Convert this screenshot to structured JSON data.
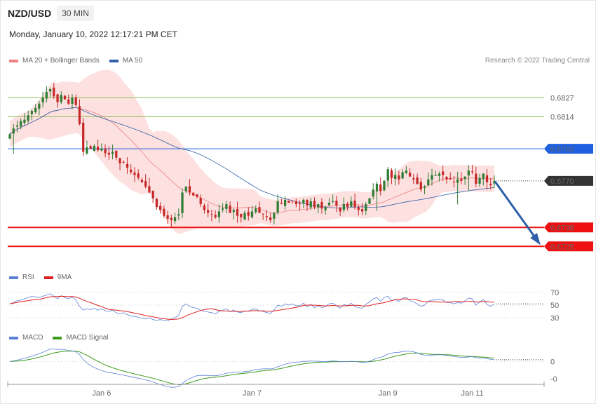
{
  "header": {
    "symbol": "NZD/USD",
    "timeframe": "30 MIN",
    "datetime": "Monday, January 10, 2022 12:17:21 PM CET",
    "credit": "Research © 2022 Trading Central"
  },
  "legend_price": [
    {
      "label": "MA 20 + Bollinger Bands",
      "color": "#f08080"
    },
    {
      "label": "MA 50",
      "color": "#2e5fa8"
    }
  ],
  "legend_rsi": [
    {
      "label": "RSI",
      "color": "#5b7fd8"
    },
    {
      "label": "9MA",
      "color": "#e02020"
    }
  ],
  "legend_macd": [
    {
      "label": "MACD",
      "color": "#5b7fd8"
    },
    {
      "label": "MACD Signal",
      "color": "#3a9a1a"
    }
  ],
  "colors": {
    "up": "#2e7d32",
    "down": "#c62828",
    "band": "#fde0e0",
    "support": "#ee1111",
    "pivot": "#1e60e0",
    "resist": "#8fbf5a",
    "current": "#333333",
    "arrow": "#2e5fa8"
  },
  "chart_data": [
    {
      "type": "candlestick",
      "panel": "price",
      "ylim": [
        0.6716,
        0.6846
      ],
      "x_ticks": [
        "Jan 6",
        "Jan 7",
        "Jan 9",
        "Jan 11"
      ],
      "levels": [
        {
          "value": 0.6827,
          "label": "0.6827",
          "kind": "resist"
        },
        {
          "value": 0.6814,
          "label": "0.6814",
          "kind": "resist"
        },
        {
          "value": 0.6792,
          "label": "0.6792",
          "kind": "pivot"
        },
        {
          "value": 0.677,
          "label": "0.6770",
          "kind": "current"
        },
        {
          "value": 0.6738,
          "label": "0.6738",
          "kind": "support"
        },
        {
          "value": 0.6725,
          "label": "0.6725",
          "kind": "support"
        }
      ],
      "close": [
        0.6802,
        0.6806,
        0.6808,
        0.6811,
        0.6812,
        0.6815,
        0.6818,
        0.682,
        0.6823,
        0.6827,
        0.6831,
        0.6833,
        0.6828,
        0.6824,
        0.6829,
        0.6826,
        0.6823,
        0.6827,
        0.6822,
        0.6809,
        0.679,
        0.6793,
        0.6792,
        0.6794,
        0.6791,
        0.6792,
        0.6789,
        0.6788,
        0.679,
        0.6786,
        0.6782,
        0.6783,
        0.6779,
        0.6776,
        0.6774,
        0.6772,
        0.6769,
        0.6766,
        0.6762,
        0.6758,
        0.6752,
        0.675,
        0.6746,
        0.6744,
        0.6743,
        0.6745,
        0.6747,
        0.6762,
        0.6766,
        0.6762,
        0.676,
        0.6759,
        0.6754,
        0.675,
        0.6748,
        0.6747,
        0.6745,
        0.6749,
        0.6751,
        0.6754,
        0.6748,
        0.675,
        0.6746,
        0.6745,
        0.6748,
        0.6746,
        0.6749,
        0.6751,
        0.6748,
        0.6747,
        0.6745,
        0.6743,
        0.6748,
        0.6756,
        0.6754,
        0.6757,
        0.6755,
        0.6756,
        0.6754,
        0.6754,
        0.6757,
        0.6753,
        0.6756,
        0.6752,
        0.6754,
        0.6751,
        0.6752,
        0.6755,
        0.6756,
        0.6753,
        0.6749,
        0.6754,
        0.6752,
        0.6756,
        0.6752,
        0.675,
        0.6749,
        0.6754,
        0.6758,
        0.6764,
        0.6768,
        0.6763,
        0.677,
        0.6778,
        0.6772,
        0.6774,
        0.6771,
        0.6776,
        0.6777,
        0.6773,
        0.6771,
        0.6768,
        0.6764,
        0.6766,
        0.6771,
        0.6774,
        0.6774,
        0.6775,
        0.6774,
        0.6771,
        0.6771,
        0.6769,
        0.6771,
        0.677,
        0.6773,
        0.6777,
        0.6776,
        0.6768,
        0.6772,
        0.6775,
        0.6769,
        0.6767,
        0.677
      ]
    },
    {
      "type": "line",
      "panel": "rsi",
      "ylim": [
        20,
        80
      ],
      "y_ticks": [
        "70",
        "50",
        "30"
      ],
      "series": [
        {
          "name": "RSI"
        },
        {
          "name": "9MA"
        }
      ],
      "values": [
        52,
        54,
        57,
        58,
        60,
        62,
        64,
        63,
        62,
        64,
        66,
        68,
        64,
        60,
        65,
        62,
        60,
        63,
        58,
        48,
        42,
        44,
        43,
        45,
        42,
        44,
        41,
        40,
        42,
        38,
        36,
        38,
        35,
        33,
        32,
        31,
        29,
        28,
        30,
        27,
        26,
        27,
        26,
        25,
        28,
        30,
        34,
        48,
        52,
        48,
        46,
        45,
        42,
        40,
        39,
        38,
        36,
        40,
        42,
        44,
        40,
        42,
        39,
        38,
        41,
        40,
        43,
        44,
        41,
        40,
        38,
        37,
        42,
        50,
        48,
        52,
        50,
        52,
        49,
        49,
        53,
        47,
        51,
        46,
        49,
        46,
        48,
        52,
        53,
        49,
        45,
        51,
        49,
        53,
        48,
        46,
        45,
        51,
        55,
        60,
        62,
        56,
        62,
        64,
        57,
        59,
        56,
        61,
        62,
        57,
        55,
        52,
        48,
        50,
        56,
        58,
        58,
        59,
        58,
        54,
        54,
        52,
        54,
        53,
        57,
        61,
        60,
        50,
        55,
        59,
        51,
        48,
        52
      ]
    },
    {
      "type": "line",
      "panel": "macd",
      "ylim": [
        -0.0012,
        0.0011
      ],
      "y_ticks": [
        "0",
        "-0"
      ],
      "series": [
        {
          "name": "MACD"
        },
        {
          "name": "MACD Signal"
        }
      ]
    }
  ]
}
